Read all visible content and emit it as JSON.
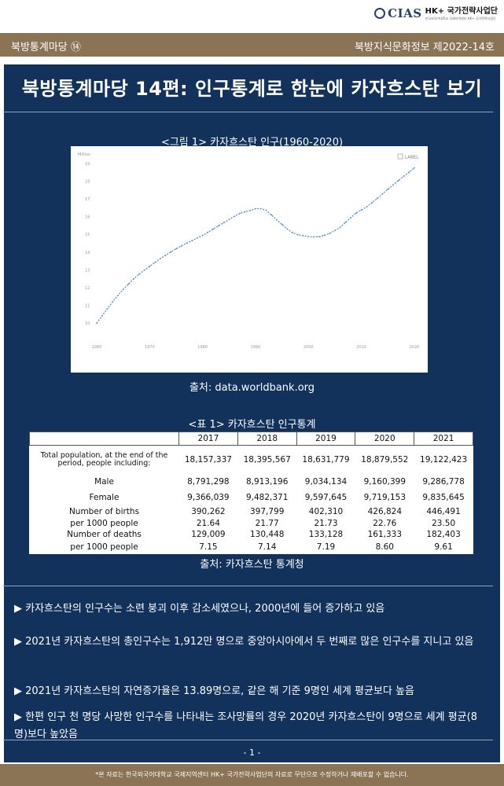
{
  "logo": {
    "mark": "CIAS",
    "main": "HK+ 국가전략사업단",
    "sub": "한국외국어대학교 국제지역센터 HK+ 국가전략사업단"
  },
  "ribbon": {
    "left": "북방통계마당 ⑭",
    "right": "북방지식문화정보  제2022-14호"
  },
  "title": "북방통계마당 14편: 인구통계로 한눈에 카자흐스탄 보기",
  "figure": {
    "caption": "<그림 1> 카자흐스탄 인구(1960-2020)",
    "source": "출처: data.worldbank.org"
  },
  "chart_data": {
    "type": "line",
    "title": "",
    "ylabel": "Million",
    "legend": "LABEL",
    "legend_position": "top-right",
    "xlim": [
      1960,
      2020
    ],
    "ylim": [
      10,
      19
    ],
    "x_ticks": [
      1960,
      1970,
      1980,
      1990,
      2000,
      2010,
      2020
    ],
    "y_ticks": [
      10,
      11,
      12,
      13,
      14,
      15,
      16,
      17,
      18,
      19
    ],
    "grid": false,
    "line_color": "#5a8fc9",
    "series": [
      {
        "x": [
          1960,
          1961,
          1962,
          1963,
          1964,
          1965,
          1966,
          1967,
          1968,
          1969,
          1970,
          1971,
          1972,
          1973,
          1974,
          1975,
          1976,
          1977,
          1978,
          1979,
          1980,
          1981,
          1982,
          1983,
          1984,
          1985,
          1986,
          1987,
          1988,
          1989,
          1990,
          1991,
          1992,
          1993,
          1994,
          1995,
          1996,
          1997,
          1998,
          1999,
          2000,
          2001,
          2002,
          2003,
          2004,
          2005,
          2006,
          2007,
          2008,
          2009,
          2010,
          2011,
          2012,
          2013,
          2014,
          2015,
          2016,
          2017,
          2018,
          2019,
          2020
        ],
        "values": [
          9.99,
          10.4,
          10.8,
          11.2,
          11.55,
          11.9,
          12.2,
          12.5,
          12.75,
          12.98,
          13.2,
          13.42,
          13.63,
          13.82,
          14.01,
          14.19,
          14.35,
          14.5,
          14.65,
          14.8,
          14.95,
          15.12,
          15.3,
          15.48,
          15.66,
          15.84,
          16.02,
          16.18,
          16.27,
          16.35,
          16.45,
          16.45,
          16.36,
          16.1,
          15.82,
          15.56,
          15.3,
          15.1,
          14.98,
          14.93,
          14.88,
          14.86,
          14.87,
          14.95,
          15.06,
          15.22,
          15.4,
          15.68,
          15.95,
          16.2,
          16.38,
          16.56,
          16.79,
          17.03,
          17.29,
          17.54,
          17.79,
          18.04,
          18.28,
          18.51,
          18.75
        ]
      }
    ]
  },
  "table": {
    "caption": "<표 1> 카자흐스탄 인구통계",
    "source": "출처: 카자흐스탄 통계청",
    "years": [
      "2017",
      "2018",
      "2019",
      "2020",
      "2021"
    ],
    "rows": [
      {
        "label": "Total population, at the end of the period, people including:",
        "values": [
          "18,157,337",
          "18,395,567",
          "18,631,779",
          "18,879,552",
          "19,122,423"
        ]
      },
      {
        "label": "Male",
        "values": [
          "8,791,298",
          "8,913,196",
          "9,034,134",
          "9,160,399",
          "9,286,778"
        ]
      },
      {
        "label": "Female",
        "values": [
          "9,366,039",
          "9,482,371",
          "9,597,645",
          "9,719,153",
          "9,835,645"
        ]
      },
      {
        "label": "Number of births",
        "values": [
          "390,262",
          "397,799",
          "402,310",
          "426,824",
          "446,491"
        ]
      },
      {
        "label": "per 1000 people",
        "values": [
          "21.64",
          "21.77",
          "21.73",
          "22.76",
          "23.50"
        ]
      },
      {
        "label": "Number of deaths",
        "values": [
          "129,009",
          "130,448",
          "133,128",
          "161,333",
          "182,403"
        ]
      },
      {
        "label": "per 1000 people",
        "values": [
          "7.15",
          "7.14",
          "7.19",
          "8.60",
          "9.61"
        ]
      }
    ]
  },
  "bullets": [
    "▶ 카자흐스탄의 인구수는 소련 붕괴 이후 감소세였으나, 2000년에 들어 증가하고 있음",
    "▶ 2021년 카자흐스탄의 총인구수는 1,912만 명으로 중앙아시아에서 두 번째로 많은 인구수를 지니고 있음",
    "▶ 2021년 카자흐스탄의 자연증가율은 13.89명으로, 같은 해 기준 9명인 세계 평균보다 높음",
    "▶ 한편 인구 천 명당 사망한 인구수를 나타내는 조사망률의 경우 2020년 카자흐스탄이 9명으로 세계 평균(8명)보다 높았음"
  ],
  "page_number": "- 1 -",
  "footer": "*본 자료는 한국외국어대학교 국제지역센터 HK+ 국가전략사업단의 자료로 무단으로 수정하거나 재배포할 수 없습니다."
}
